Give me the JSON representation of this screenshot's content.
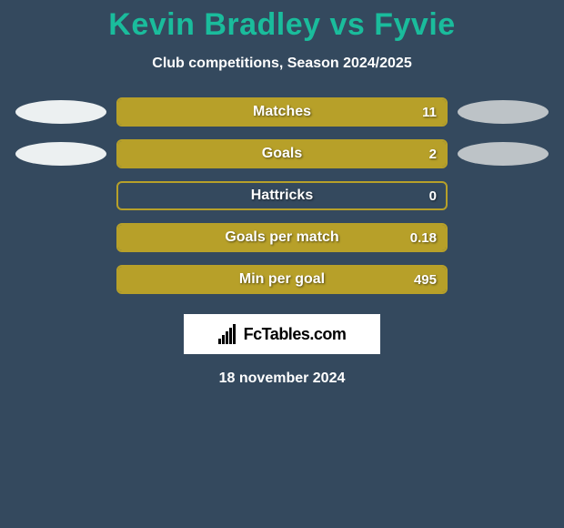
{
  "title": "Kevin Bradley vs Fyvie",
  "subtitle": "Club competitions, Season 2024/2025",
  "date": "18 november 2024",
  "brand": "FcTables.com",
  "colors": {
    "background": "#34495e",
    "title": "#1abc9c",
    "text": "#ffffff",
    "left_ellipse": "#ecf0f1",
    "right_ellipse": "#bdc3c7",
    "bar_border": "#b7a029",
    "bar_fill": "#b7a029",
    "brand_bg": "#ffffff"
  },
  "metrics": [
    {
      "label": "Matches",
      "value_text": "11",
      "left_value": 0,
      "right_value": 11,
      "fill_side": "right",
      "fill_percent": 100,
      "show_left_ellipse": true,
      "show_right_ellipse": true
    },
    {
      "label": "Goals",
      "value_text": "2",
      "left_value": 0,
      "right_value": 2,
      "fill_side": "right",
      "fill_percent": 100,
      "show_left_ellipse": true,
      "show_right_ellipse": true
    },
    {
      "label": "Hattricks",
      "value_text": "0",
      "left_value": 0,
      "right_value": 0,
      "fill_side": "none",
      "fill_percent": 0,
      "show_left_ellipse": false,
      "show_right_ellipse": false
    },
    {
      "label": "Goals per match",
      "value_text": "0.18",
      "left_value": 0,
      "right_value": 0.18,
      "fill_side": "right",
      "fill_percent": 100,
      "show_left_ellipse": false,
      "show_right_ellipse": false
    },
    {
      "label": "Min per goal",
      "value_text": "495",
      "left_value": 0,
      "right_value": 495,
      "fill_side": "right",
      "fill_percent": 100,
      "show_left_ellipse": false,
      "show_right_ellipse": false
    }
  ]
}
